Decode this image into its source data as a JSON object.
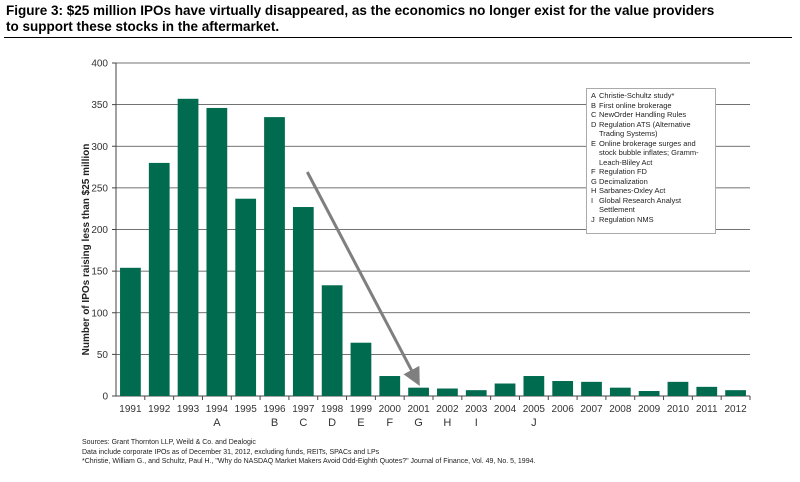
{
  "title": "Figure 3: $25 million IPOs have virtually disappeared, as the economics no longer exist for the value providers to support these stocks in the aftermarket.",
  "legend": [
    {
      "key": "A",
      "text": "Christie-Schultz study*"
    },
    {
      "key": "B",
      "text": "First online brokerage"
    },
    {
      "key": "C",
      "text": "NewOrder Handling Rules"
    },
    {
      "key": "D",
      "text": "Regulation ATS (Alternative Trading Systems)"
    },
    {
      "key": "E",
      "text": "Online brokerage surges and stock bubble inflates; Gramm-Leach-Bliley Act"
    },
    {
      "key": "F",
      "text": "Regulation FD"
    },
    {
      "key": "G",
      "text": "Decimalization"
    },
    {
      "key": "H",
      "text": "Sarbanes-Oxley Act"
    },
    {
      "key": "I",
      "text": "Global Research Analyst Settlement"
    },
    {
      "key": "J",
      "text": "Regulation NMS"
    }
  ],
  "footnotes": [
    "Sources: Grant Thornton LLP, Weild & Co. and Dealogic",
    "Data include corporate IPOs as of December 31, 2012, excluding funds, REITs, SPACs and LPs",
    "*Christie, William G., and Schultz, Paul H., \"Why do NASDAQ Market Makers Avoid Odd-Eighth Quotes?\" Journal of Finance, Vol. 49, No. 5, 1994."
  ],
  "chart_data": {
    "type": "bar",
    "ylabel": "Number of IPOs raising less than $25 million",
    "ylim": [
      0,
      400
    ],
    "yticks": [
      0,
      50,
      100,
      150,
      200,
      250,
      300,
      350,
      400
    ],
    "categories": [
      "1991",
      "1992",
      "1993",
      "1994",
      "1995",
      "1996",
      "1997",
      "1998",
      "1999",
      "2000",
      "2001",
      "2002",
      "2003",
      "2004",
      "2005",
      "2006",
      "2007",
      "2008",
      "2009",
      "2010",
      "2011",
      "2012"
    ],
    "values": [
      154,
      280,
      357,
      346,
      237,
      335,
      227,
      133,
      64,
      24,
      10,
      9,
      7,
      15,
      24,
      18,
      17,
      10,
      6,
      17,
      11,
      7
    ],
    "event_letters": {
      "1994": "A",
      "1996": "B",
      "1997": "C",
      "1998": "D",
      "1999": "E",
      "2000": "F",
      "2001": "G",
      "2002": "H",
      "2003": "I",
      "2005": "J"
    },
    "bar_color": "#006B4F",
    "arrow": {
      "from": "1997",
      "to": "2001",
      "color": "#7f7f7f"
    },
    "grid": true
  }
}
